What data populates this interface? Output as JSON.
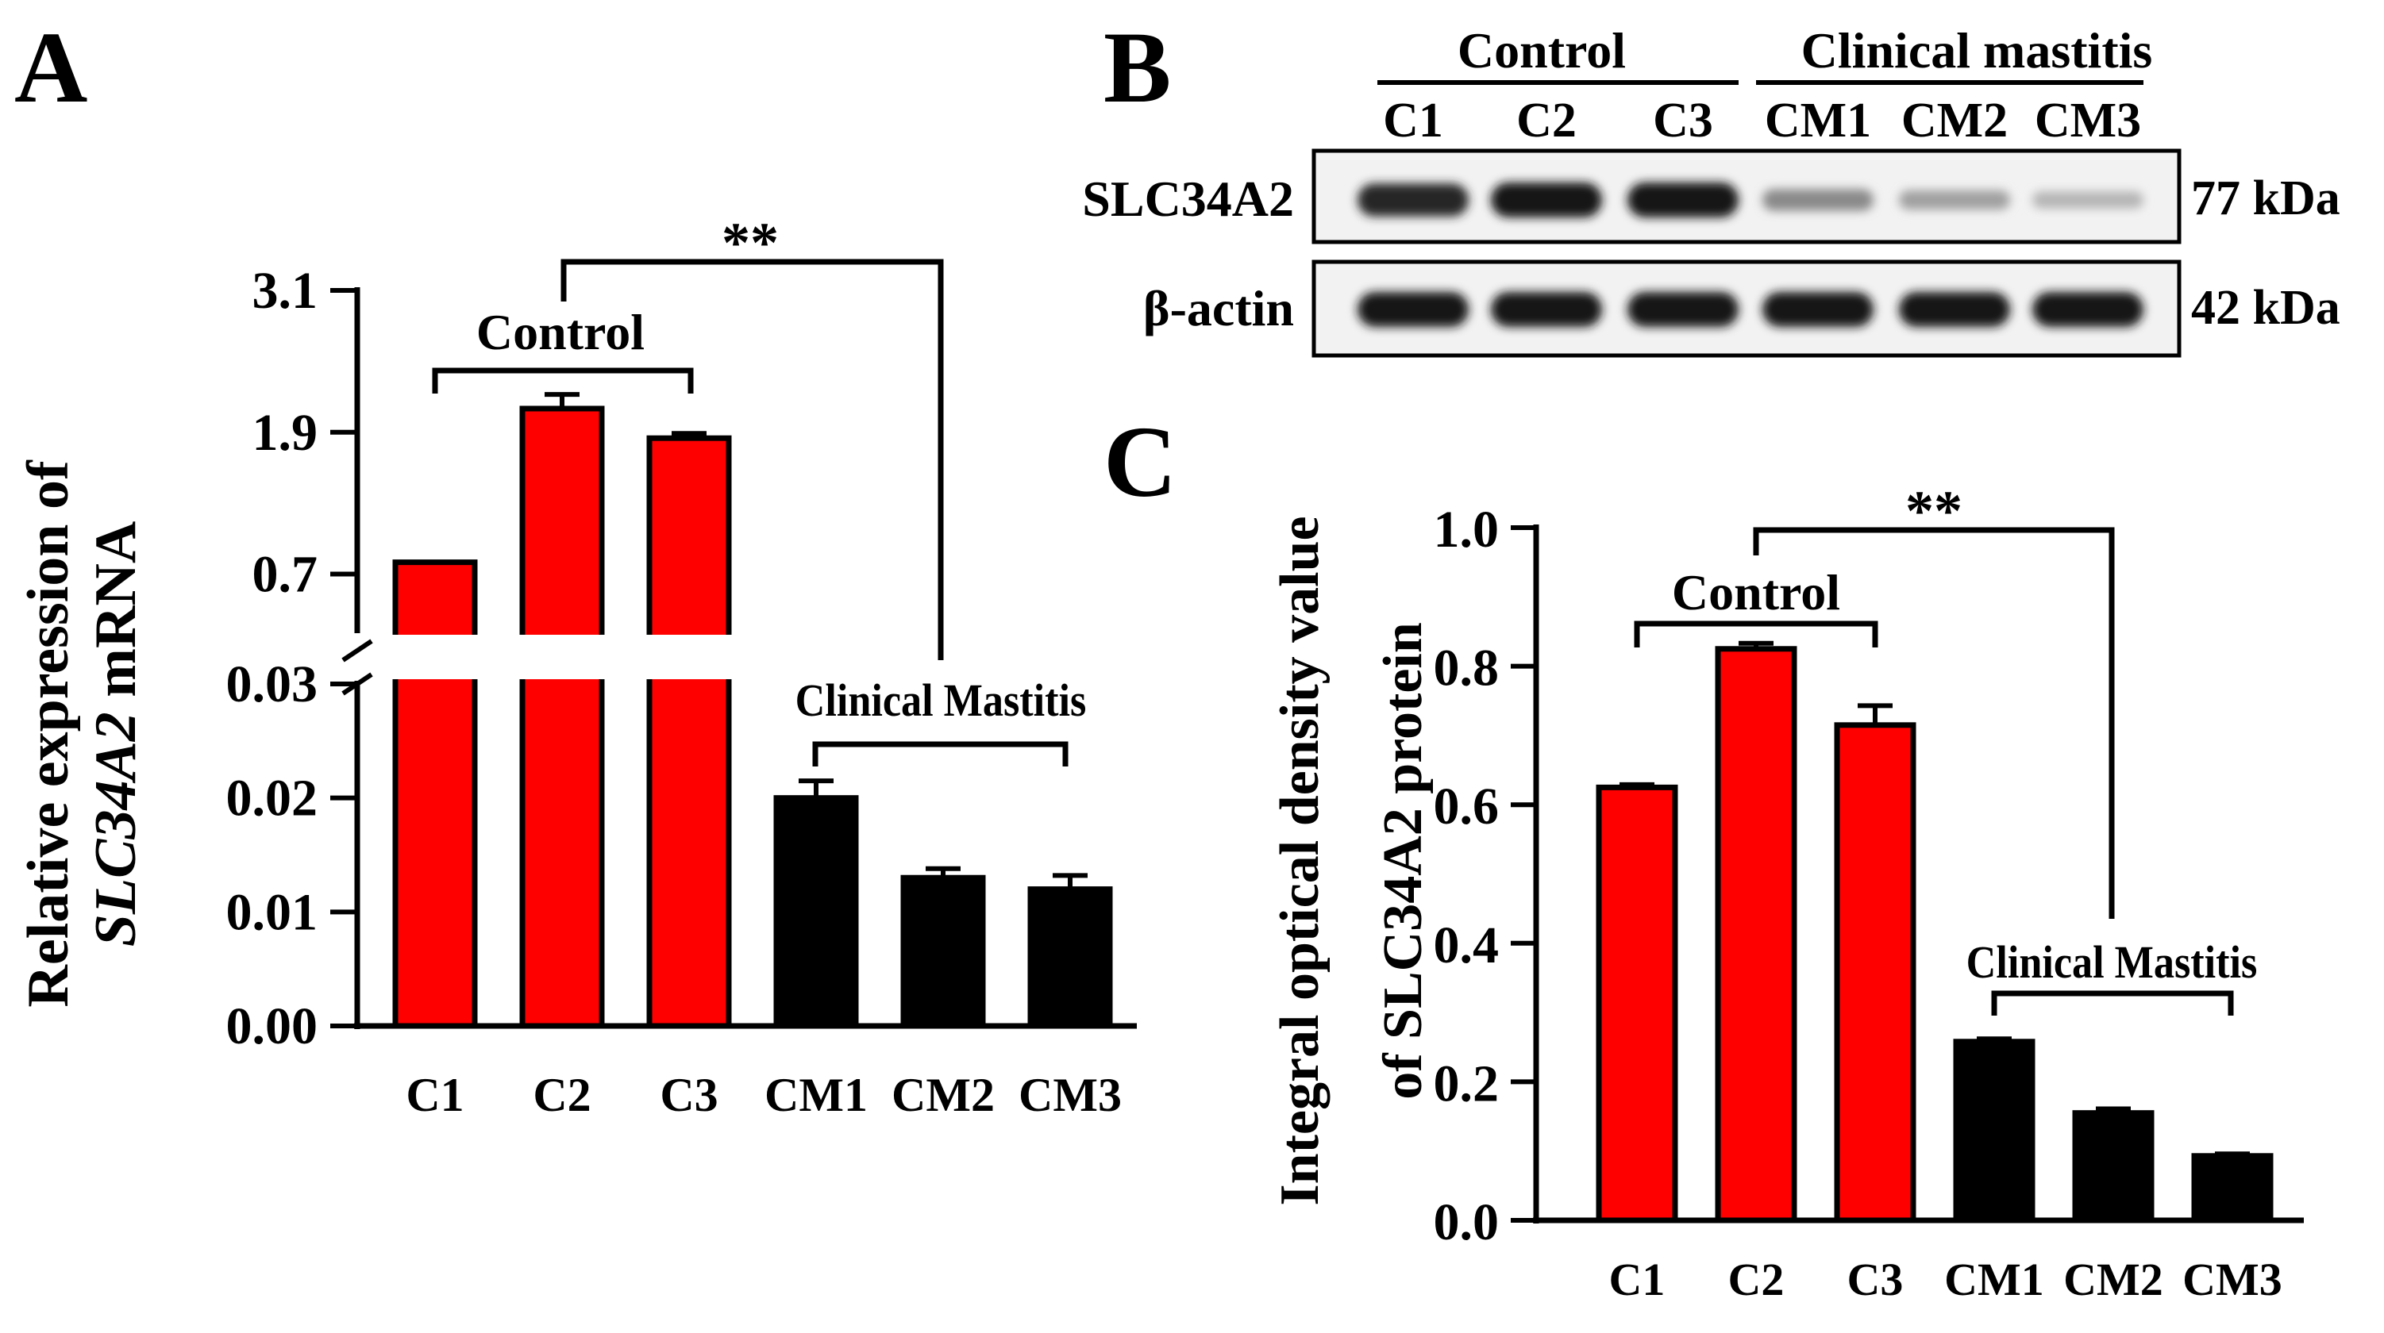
{
  "colors": {
    "control": "#ff0000",
    "mastitis": "#000000",
    "axis": "#000000"
  },
  "panel_a": {
    "letter": "A",
    "ylabel_line1": "Relative expression of",
    "ylabel_gene": "SLC34A2",
    "ylabel_suffix": " mRNA",
    "significance": "**",
    "control_label": "Control",
    "mastitis_label": "Clinical Mastitis"
  },
  "panel_b": {
    "letter": "B",
    "group_control": "Control",
    "group_mastitis": "Clinical mastitis",
    "lanes": [
      "C1",
      "C2",
      "C3",
      "CM1",
      "CM2",
      "CM3"
    ],
    "rows": [
      {
        "protein": "SLC34A2",
        "size": "77 kDa",
        "band_strength": [
          0.92,
          1.0,
          1.0,
          0.45,
          0.35,
          0.25
        ]
      },
      {
        "protein": "β-actin",
        "size": "42 kDa",
        "band_strength": [
          1.0,
          1.0,
          1.0,
          1.0,
          1.0,
          1.0
        ]
      }
    ]
  },
  "panel_c": {
    "letter": "C",
    "ylabel_line1": "Integral optical density value",
    "ylabel_line2": "of SLC34A2 protein",
    "significance": "**",
    "control_label": "Control",
    "mastitis_label": "Clinical Mastitis"
  },
  "chart_data": [
    {
      "panel": "A",
      "type": "bar",
      "title": "",
      "xlabel": "",
      "ylabel": "Relative expression of SLC34A2 mRNA",
      "categories": [
        "C1",
        "C2",
        "C3",
        "CM1",
        "CM2",
        "CM3"
      ],
      "values": [
        0.8,
        2.1,
        1.85,
        0.02,
        0.013,
        0.012
      ],
      "errors": [
        0.0,
        0.12,
        0.04,
        0.0015,
        0.0008,
        0.0012
      ],
      "groups": [
        "Control",
        "Control",
        "Control",
        "Clinical Mastitis",
        "Clinical Mastitis",
        "Clinical Mastitis"
      ],
      "y_axis_break": true,
      "lower_segment": {
        "ylim": [
          0,
          0.03
        ],
        "ticks": [
          "0.00",
          "0.01",
          "0.02",
          "0.03"
        ]
      },
      "upper_segment": {
        "ylim": [
          0.2,
          3.1
        ],
        "ticks": [
          "0.7",
          "1.9",
          "3.1"
        ]
      }
    },
    {
      "panel": "C",
      "type": "bar",
      "title": "",
      "xlabel": "",
      "ylabel": "Integral optical density value of SLC34A2 protein",
      "categories": [
        "C1",
        "C2",
        "C3",
        "CM1",
        "CM2",
        "CM3"
      ],
      "values": [
        0.625,
        0.825,
        0.715,
        0.258,
        0.155,
        0.093
      ],
      "errors": [
        0.004,
        0.008,
        0.028,
        0.004,
        0.006,
        0.003
      ],
      "groups": [
        "Control",
        "Control",
        "Control",
        "Clinical Mastitis",
        "Clinical Mastitis",
        "Clinical Mastitis"
      ],
      "ylim": [
        0,
        1.0
      ],
      "ticks": [
        "0.0",
        "0.2",
        "0.4",
        "0.6",
        "0.8",
        "1.0"
      ]
    }
  ]
}
